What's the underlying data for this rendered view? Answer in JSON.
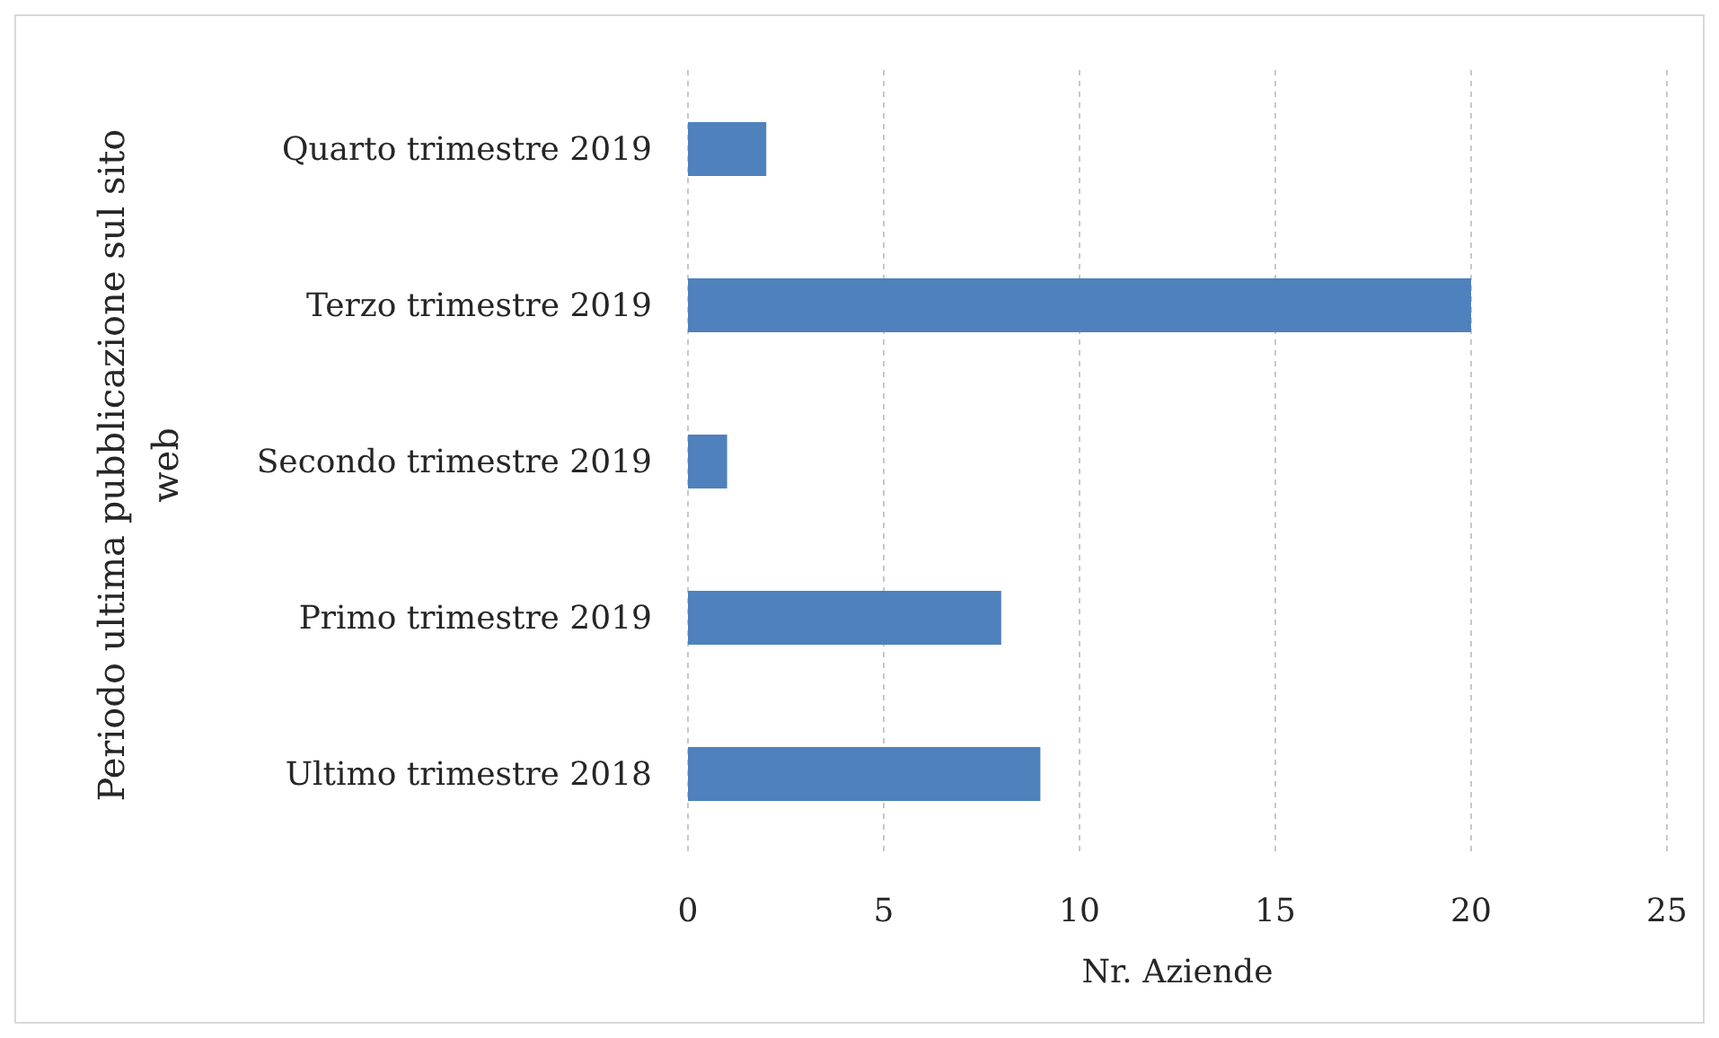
{
  "chart_data": {
    "type": "bar",
    "orientation": "horizontal",
    "categories": [
      "Quarto trimestre 2019",
      "Terzo trimestre 2019",
      "Secondo trimestre 2019",
      "Primo trimestre 2019",
      "Ultimo trimestre 2018"
    ],
    "values": [
      2,
      20,
      1,
      8,
      9
    ],
    "color": "#4f81bd",
    "xlabel": "Nr. Aziende",
    "ylabel": "Periodo ultima pubblicazione sul sito web",
    "xlim": [
      0,
      25
    ],
    "xticks": [
      0,
      5,
      10,
      15,
      20,
      25
    ],
    "grid": "x"
  }
}
